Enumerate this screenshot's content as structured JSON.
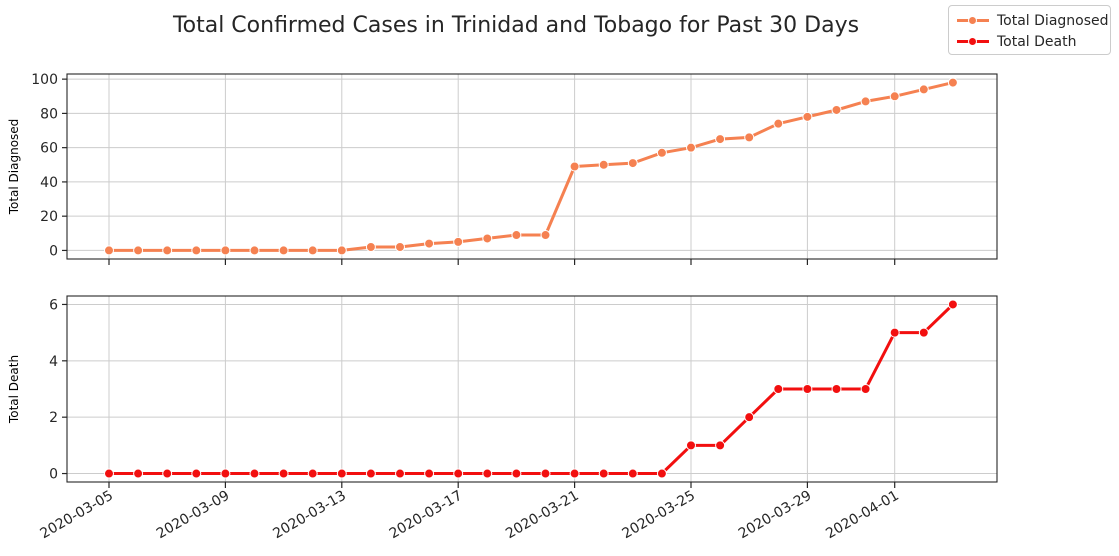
{
  "chart_data": {
    "type": "line",
    "title": "Total Confirmed Cases in Trinidad and Tobago for Past 30 Days",
    "x": [
      "2020-03-05",
      "2020-03-06",
      "2020-03-07",
      "2020-03-08",
      "2020-03-09",
      "2020-03-10",
      "2020-03-11",
      "2020-03-12",
      "2020-03-13",
      "2020-03-14",
      "2020-03-15",
      "2020-03-16",
      "2020-03-17",
      "2020-03-18",
      "2020-03-19",
      "2020-03-20",
      "2020-03-21",
      "2020-03-22",
      "2020-03-23",
      "2020-03-24",
      "2020-03-25",
      "2020-03-26",
      "2020-03-27",
      "2020-03-28",
      "2020-03-29",
      "2020-03-30",
      "2020-03-31",
      "2020-04-01",
      "2020-04-02",
      "2020-04-03"
    ],
    "xtick_labels": [
      "2020-03-05",
      "2020-03-09",
      "2020-03-13",
      "2020-03-17",
      "2020-03-21",
      "2020-03-25",
      "2020-03-29",
      "2020-04-01"
    ],
    "legend": [
      "Total Diagnosed",
      "Total Death"
    ],
    "legend_position": "top-right",
    "panels": [
      {
        "name": "Total Diagnosed",
        "ylabel": "Total Diagnosed",
        "color": "#f58151",
        "ylim": [
          -5,
          103
        ],
        "yticks": [
          0,
          20,
          40,
          60,
          80,
          100
        ],
        "values": [
          0,
          0,
          0,
          0,
          0,
          0,
          0,
          0,
          0,
          2,
          2,
          4,
          5,
          7,
          9,
          9,
          49,
          50,
          51,
          57,
          60,
          65,
          66,
          74,
          78,
          82,
          87,
          90,
          94,
          98
        ]
      },
      {
        "name": "Total Death",
        "ylabel": "Total Death",
        "color": "#f20f0f",
        "ylim": [
          -0.3,
          6.3
        ],
        "yticks": [
          0,
          2,
          4,
          6
        ],
        "values": [
          0,
          0,
          0,
          0,
          0,
          0,
          0,
          0,
          0,
          0,
          0,
          0,
          0,
          0,
          0,
          0,
          0,
          0,
          0,
          0,
          1,
          1,
          2,
          3,
          3,
          3,
          3,
          5,
          5,
          6
        ]
      }
    ]
  }
}
